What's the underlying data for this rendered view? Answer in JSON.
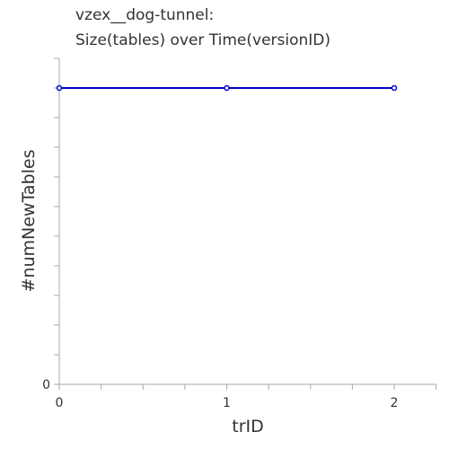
{
  "chart_data": {
    "type": "line",
    "title": [
      "vzex__dog-tunnel:",
      "Size(tables) over Time(versionID)"
    ],
    "xlabel": "trID",
    "ylabel": "#numNewTables",
    "x": [
      0,
      1,
      2
    ],
    "xticks": [
      "0",
      "1",
      "2"
    ],
    "yticks": [
      "0"
    ],
    "series": [
      {
        "values": [
          1,
          1,
          1
        ],
        "color": "#0000cc"
      }
    ],
    "xlim": [
      0,
      2.25
    ],
    "ylim": [
      0,
      1.1
    ],
    "grid": false,
    "legend": "none"
  }
}
